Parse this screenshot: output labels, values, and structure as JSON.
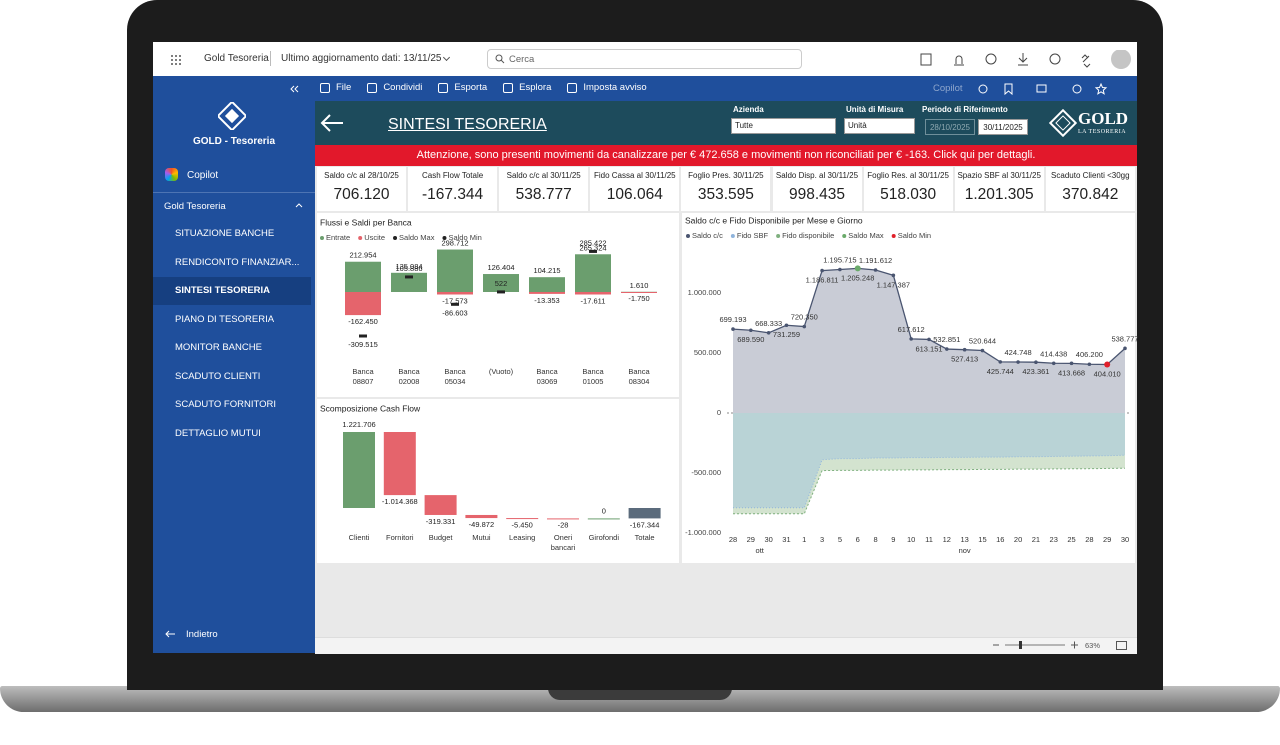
{
  "topbar": {
    "app": "Gold Tesoreria",
    "updated": "Ultimo aggiornamento dati: 13/11/25",
    "search": "Cerca"
  },
  "toolbar": {
    "items": [
      "File",
      "Condividi",
      "Esporta",
      "Esplora",
      "Imposta avviso"
    ],
    "copilot": "Copilot"
  },
  "sidebar": {
    "brand": "GOLD - Tesoreria",
    "copilot": "Copilot",
    "section": "Gold Tesoreria",
    "items": [
      "SITUAZIONE BANCHE",
      "RENDICONTO FINANZIAR...",
      "SINTESI TESORERIA",
      "PIANO DI TESORERIA",
      "MONITOR BANCHE",
      "SCADUTO CLIENTI",
      "SCADUTO FORNITORI",
      "DETTAGLIO MUTUI"
    ],
    "active": 2,
    "back": "Indietro"
  },
  "header": {
    "title": "SINTESI TESORERIA",
    "filters": [
      {
        "label": "Azienda",
        "value": "Tutte"
      },
      {
        "label": "Unità di Misura",
        "value": "Unità"
      }
    ],
    "period_label": "Periodo di Riferimento",
    "period_from": "28/10/2025",
    "period_to": "30/11/2025",
    "logo": "GOLD",
    "logo_sub": "LA TESORERIA"
  },
  "alert": "Attenzione, sono presenti movimenti da canalizzare per € 472.658 e movimenti non riconciliati per € -163. Click qui per dettagli.",
  "kpis": [
    {
      "label": "Saldo c/c al 28/10/25",
      "value": "706.120"
    },
    {
      "label": "Cash Flow Totale",
      "value": "-167.344"
    },
    {
      "label": "Saldo c/c al 30/11/25",
      "value": "538.777"
    },
    {
      "label": "Fido Cassa al 30/11/25",
      "value": "106.064"
    },
    {
      "label": "Foglio Pres. 30/11/25",
      "value": "353.595"
    },
    {
      "label": "Saldo Disp. al 30/11/25",
      "value": "998.435"
    },
    {
      "label": "Foglio Res. al 30/11/25",
      "value": "518.030"
    },
    {
      "label": "Spazio SBF al 30/11/25",
      "value": "1.201.305"
    },
    {
      "label": "Scaduto Clienti <30gg",
      "value": "370.842"
    }
  ],
  "charts": [
    {
      "type": "bar",
      "title": "Flussi e Saldi per Banca",
      "categories": [
        [
          "Banca",
          "08807"
        ],
        [
          "Banca",
          "02008"
        ],
        [
          "Banca",
          "05034"
        ],
        [
          "(Vuoto)"
        ],
        [
          "Banca",
          "03069"
        ],
        [
          "Banca",
          "01005"
        ],
        [
          "Banca",
          "08304"
        ]
      ],
      "series": [
        {
          "name": "Entrate",
          "color": "#6b9e6e",
          "values": [
            212954,
            135084,
            298712,
            126404,
            104215,
            265324,
            1610
          ],
          "value_labels": [
            "212.954",
            "135.084",
            "298.712",
            "126.404",
            "104.215",
            "265.324",
            "1.610"
          ]
        },
        {
          "name": "Uscite",
          "color": "#e5646c",
          "values": [
            -162450,
            null,
            -17573,
            null,
            -13353,
            -17611,
            -1750
          ],
          "value_labels": [
            "-162.450",
            null,
            "-17.573",
            null,
            "-13.353",
            "-17.611",
            "-1.750"
          ]
        },
        {
          "name": "Saldo Max",
          "color": "#222222",
          "values": [
            null,
            null,
            null,
            null,
            null,
            285422,
            null
          ],
          "value_labels": [
            null,
            null,
            null,
            null,
            null,
            "285.422",
            null
          ]
        },
        {
          "name": "Saldo Min",
          "color": "#222222",
          "values": [
            -309515,
            105886,
            -86603,
            522,
            null,
            null,
            null
          ],
          "value_labels": [
            "-309.515",
            "105.886",
            "-86.603",
            "522",
            null,
            null,
            null
          ]
        }
      ]
    },
    {
      "type": "waterfall",
      "title": "Scomposizione Cash Flow",
      "categories": [
        [
          "Clienti"
        ],
        [
          "Fornitori"
        ],
        [
          "Budget"
        ],
        [
          "Mutui"
        ],
        [
          "Leasing"
        ],
        [
          "Oneri",
          "bancari"
        ],
        [
          "Girofondi"
        ],
        [
          "Totale"
        ]
      ],
      "values": [
        1221706,
        -1014368,
        -319331,
        -49872,
        -5450,
        -28,
        0,
        -167344
      ],
      "value_labels": [
        "1.221.706",
        "-1.014.368",
        "-319.331",
        "-49.872",
        "-5.450",
        "-28",
        "0",
        "-167.344"
      ],
      "increase_color": "#6b9e6e",
      "decrease_color": "#e5646c",
      "total_color": "#5b6b7c",
      "last_is_total": true
    },
    {
      "type": "line",
      "title": "Saldo c/c e Fido Disponibile per Mese e Giorno",
      "categories": [
        "28",
        "29",
        "30",
        "31",
        "1",
        "3",
        "5",
        "6",
        "8",
        "9",
        "10",
        "11",
        "12",
        "13",
        "15",
        "16",
        "20",
        "21",
        "23",
        "25",
        "28",
        "29",
        "30"
      ],
      "months": [
        {
          "label": "ott",
          "start": 0,
          "end": 3
        },
        {
          "label": "nov",
          "start": 4,
          "end": 22
        }
      ],
      "series": [
        {
          "name": "Saldo c/c",
          "color": "#4a5570",
          "values": [
            699193,
            689590,
            668333,
            731259,
            720350,
            1186811,
            1195715,
            1205248,
            1191612,
            1147387,
            617612,
            613151,
            532851,
            527413,
            520644,
            425744,
            424748,
            423361,
            414438,
            413668,
            406200,
            404010,
            538777
          ],
          "value_labels": [
            "699.193",
            "689.590",
            "668.333",
            "731.259",
            "720.350",
            "1.186.811",
            "1.195.715",
            "1.205.248",
            "1.191.612",
            "1.147.387",
            "617.612",
            "613.151",
            "532.851",
            "527.413",
            "520.644",
            "425.744",
            "424.748",
            "423.361",
            "414.438",
            "413.668",
            "406.200",
            "404.010",
            "538.777"
          ]
        },
        {
          "name": "Fido SBF",
          "color": "#8fb4dc",
          "values": [
            -790000,
            -790000,
            -790000,
            -790000,
            -790000,
            -390000,
            -380000,
            -380000,
            -375000,
            -375000,
            -372000,
            -372000,
            -370000,
            -370000,
            -368000,
            -368000,
            -365000,
            -365000,
            -362000,
            -360000,
            -358000,
            -356000,
            -352000
          ]
        },
        {
          "name": "Fido disponibile",
          "color": "#7fb07f",
          "values": [
            -840000,
            -840000,
            -840000,
            -840000,
            -840000,
            -480000,
            -478000,
            -478000,
            -476000,
            -476000,
            -474000,
            -474000,
            -472000,
            -472000,
            -470000,
            -470000,
            -468000,
            -468000,
            -466000,
            -465000,
            -464000,
            -462000,
            -460000
          ]
        },
        {
          "name": "Saldo Max",
          "color": "#6aaa6a",
          "values": [
            null,
            null,
            null,
            null,
            null,
            null,
            null,
            1205248,
            null,
            null,
            null,
            null,
            null,
            null,
            null,
            null,
            null,
            null,
            null,
            null,
            null,
            null,
            null
          ]
        },
        {
          "name": "Saldo Min",
          "color": "#e0202a",
          "values": [
            null,
            null,
            null,
            null,
            null,
            null,
            null,
            null,
            null,
            null,
            null,
            null,
            null,
            null,
            null,
            null,
            null,
            null,
            null,
            null,
            null,
            404010,
            null
          ]
        }
      ],
      "ylim": [
        -1000000,
        1400000
      ],
      "yticks": [
        {
          "value": -1000000,
          "label": "-1.000.000"
        },
        {
          "value": -500000,
          "label": "-500.000"
        },
        0,
        {
          "value": 500000,
          "label": "500.000"
        },
        {
          "value": 1000000,
          "label": "1.000.000"
        }
      ],
      "zero_line": true
    }
  ],
  "zoom": "63%"
}
